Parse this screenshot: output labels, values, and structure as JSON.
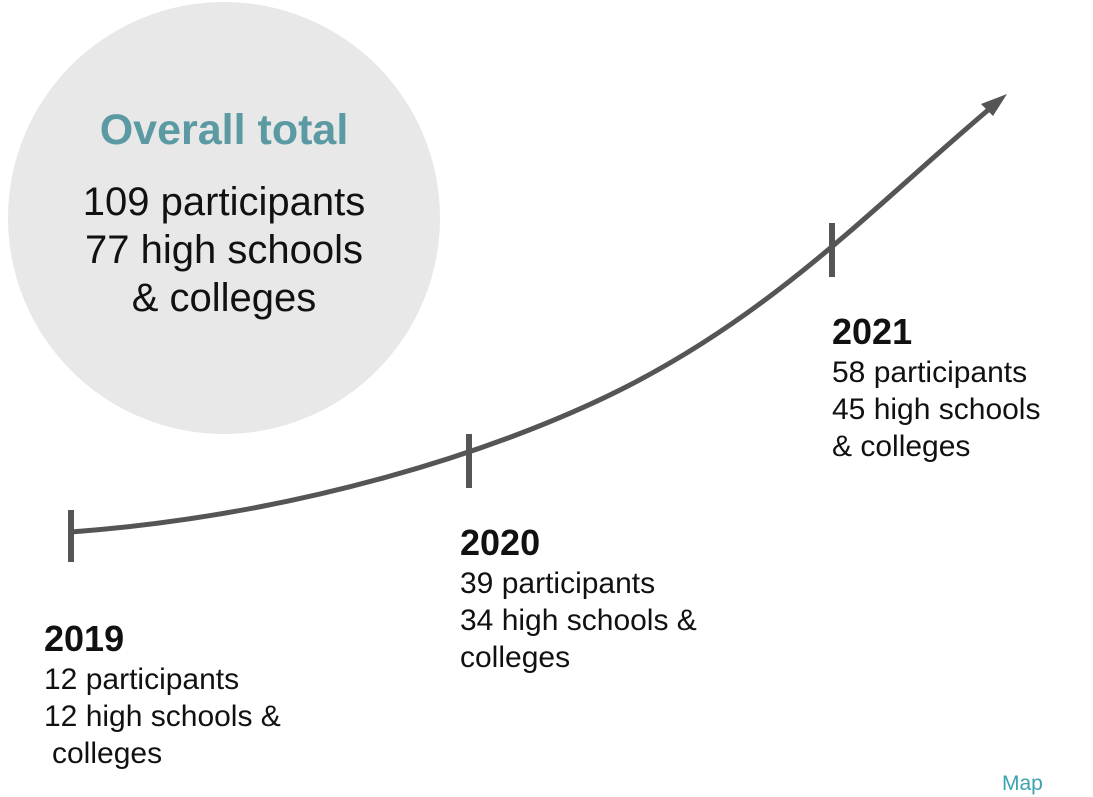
{
  "overall": {
    "title": "Overall total",
    "line1": "109 participants",
    "line2": "77 high schools",
    "line3": "& colleges"
  },
  "years": [
    {
      "year": "2019",
      "line1": "12 participants",
      "line2": "12 high schools &",
      "line3": "colleges"
    },
    {
      "year": "2020",
      "line1": "39 participants",
      "line2": "34 high schools &",
      "line3": "colleges"
    },
    {
      "year": "2021",
      "line1": "58 participants",
      "line2": "45 high schools",
      "line3": "& colleges"
    }
  ],
  "map_link": "Map",
  "colors": {
    "accent": "#5b9aa3",
    "circle": "#e8e8e8",
    "line": "#555555",
    "link": "#3aa3ad"
  }
}
